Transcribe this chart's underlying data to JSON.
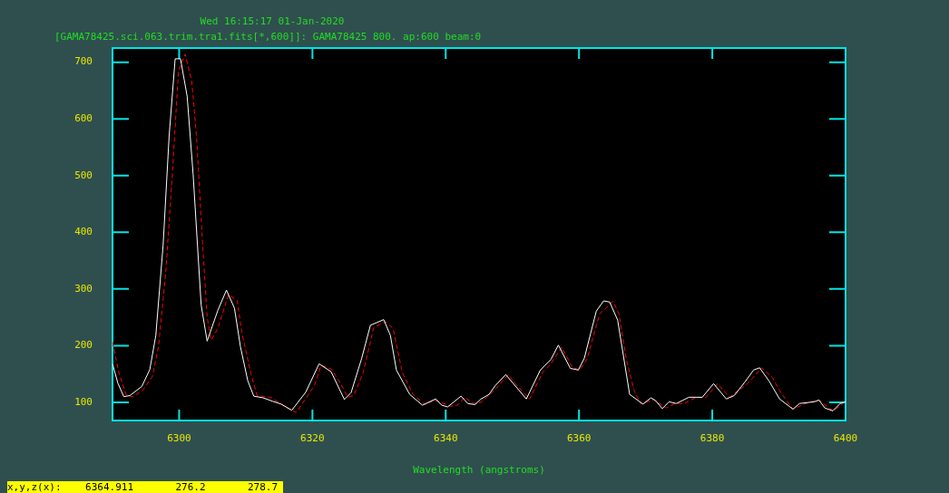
{
  "chart_data": {
    "type": "line",
    "title": "Wed 16:15:17 01-Jan-2020",
    "subtitle": "[GAMA78425.sci.063.trim.tra1.fits[*,600]]: GAMA78425 800. ap:600 beam:0",
    "xlabel": "Wavelength (angstroms)",
    "annotations": [
      "x,y,z(x):    6364.911       276.2       278.7"
    ],
    "xlim": [
      6290,
      6400
    ],
    "xticks": [
      6300,
      6320,
      6340,
      6360,
      6380,
      6400
    ],
    "ylim": [
      68,
      725
    ],
    "yticks": [
      100,
      200,
      300,
      400,
      500,
      600,
      700
    ],
    "grid": false,
    "legend": false,
    "marker": "none",
    "series": [
      {
        "color": "#ffffff",
        "line_style": "solid",
        "x": [
          6290.0,
          6290.8,
          6291.7,
          6292.6,
          6294.4,
          6295.6,
          6296.5,
          6297.6,
          6298.5,
          6299.4,
          6300.2,
          6301.2,
          6302.1,
          6303.3,
          6304.2,
          6305.8,
          6307.1,
          6308.3,
          6309.2,
          6310.3,
          6311.2,
          6312.6,
          6314.0,
          6315.3,
          6316.9,
          6319.0,
          6321.0,
          6322.8,
          6324.8,
          6325.8,
          6327.4,
          6328.7,
          6330.7,
          6331.7,
          6332.6,
          6334.6,
          6336.5,
          6338.5,
          6339.4,
          6340.3,
          6342.3,
          6343.3,
          6344.4,
          6345.3,
          6346.5,
          6347.4,
          6349.0,
          6352.1,
          6354.2,
          6355.8,
          6356.9,
          6358.7,
          6359.9,
          6360.8,
          6362.6,
          6363.7,
          6364.6,
          6365.8,
          6367.6,
          6369.6,
          6370.8,
          6371.5,
          6372.5,
          6373.5,
          6374.6,
          6376.5,
          6378.5,
          6380.2,
          6382.1,
          6383.3,
          6384.9,
          6386.2,
          6387.1,
          6388.5,
          6390.1,
          6392.1,
          6393.1,
          6395.3,
          6396.0,
          6396.9,
          6398.1,
          6399.2,
          6400.0
        ],
        "values": [
          168,
          134,
          110,
          112,
          128,
          158,
          218,
          378,
          570,
          706,
          706,
          640,
          502,
          272,
          208,
          262,
          298,
          266,
          198,
          138,
          111,
          108,
          102,
          97,
          86,
          118,
          168,
          154,
          105,
          117,
          178,
          236,
          246,
          218,
          157,
          114,
          95,
          106,
          95,
          92,
          111,
          98,
          96,
          106,
          114,
          129,
          149,
          106,
          157,
          176,
          201,
          160,
          157,
          178,
          261,
          279,
          277,
          245,
          114,
          97,
          108,
          103,
          89,
          101,
          98,
          109,
          109,
          133,
          106,
          112,
          136,
          157,
          161,
          138,
          106,
          88,
          98,
          101,
          104,
          90,
          85,
          98,
          101
        ]
      },
      {
        "color": "#ff0000",
        "line_style": "dashed",
        "x": [
          6290.0,
          6291.0,
          6292.1,
          6293.1,
          6294.6,
          6296.0,
          6296.9,
          6298.0,
          6299.0,
          6299.9,
          6300.9,
          6301.9,
          6302.6,
          6303.5,
          6304.2,
          6304.8,
          6305.8,
          6307.4,
          6308.7,
          6309.4,
          6310.8,
          6311.7,
          6313.7,
          6315.8,
          6317.6,
          6319.4,
          6320.3,
          6321.3,
          6322.8,
          6324.0,
          6325.3,
          6326.2,
          6327.6,
          6329.2,
          6331.0,
          6332.1,
          6333.5,
          6335.1,
          6336.9,
          6338.3,
          6340.8,
          6341.9,
          6342.8,
          6344.2,
          6345.3,
          6346.2,
          6347.6,
          6349.4,
          6350.8,
          6352.6,
          6354.6,
          6355.8,
          6357.4,
          6359.0,
          6360.1,
          6361.2,
          6363.1,
          6365.1,
          6366.0,
          6367.1,
          6368.3,
          6369.3,
          6371.2,
          6373.1,
          6374.4,
          6375.8,
          6377.6,
          6379.0,
          6380.8,
          6382.6,
          6385.3,
          6387.4,
          6389.0,
          6390.3,
          6392.1,
          6394.0,
          6396.0,
          6398.1,
          6399.9
        ],
        "values": [
          206,
          150,
          112,
          110,
          122,
          146,
          198,
          330,
          506,
          685,
          714,
          666,
          570,
          384,
          250,
          210,
          230,
          290,
          280,
          224,
          149,
          112,
          109,
          93,
          82,
          114,
          130,
          165,
          159,
          138,
          109,
          112,
          152,
          232,
          242,
          230,
          152,
          114,
          96,
          104,
          93,
          96,
          109,
          98,
          100,
          109,
          125,
          149,
          128,
          106,
          154,
          168,
          197,
          162,
          157,
          176,
          256,
          278,
          256,
          176,
          120,
          97,
          105,
          90,
          98,
          98,
          109,
          108,
          133,
          109,
          133,
          161,
          144,
          117,
          88,
          98,
          104,
          85,
          100
        ]
      }
    ]
  }
}
